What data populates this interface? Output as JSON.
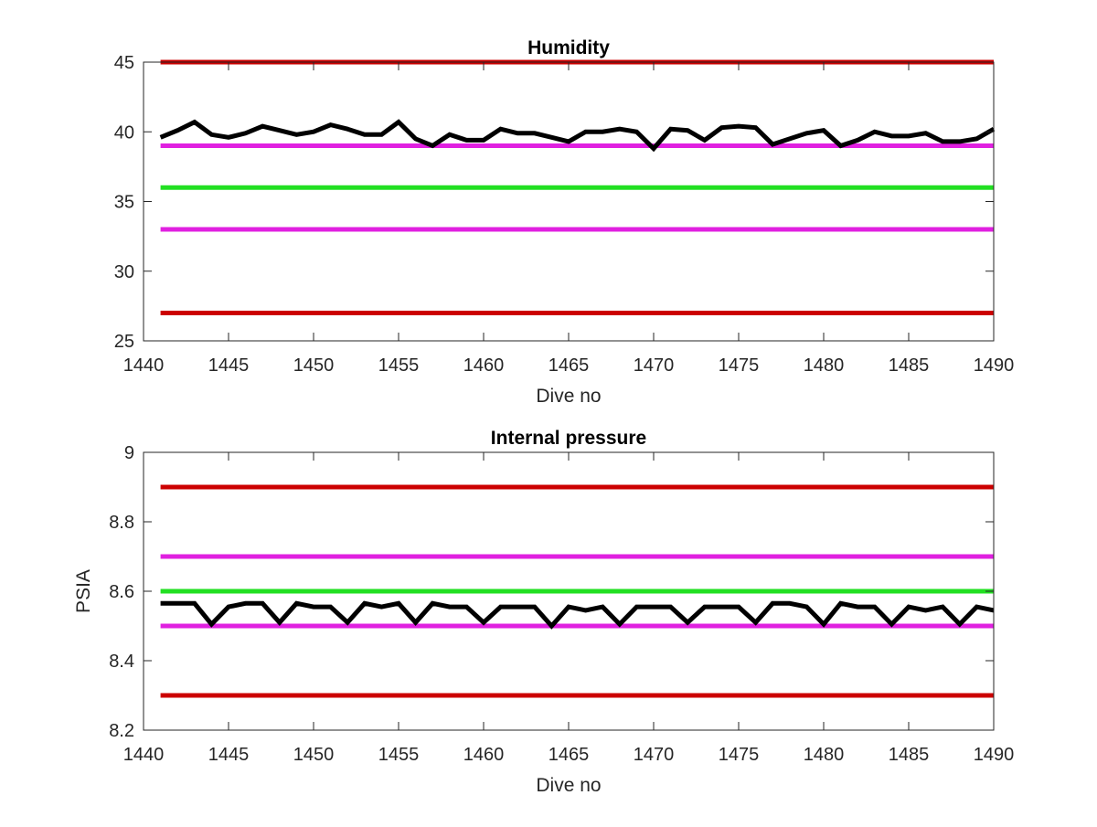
{
  "chart_data": [
    {
      "type": "line",
      "title": "Humidity",
      "xlabel": "Dive no",
      "ylabel": "",
      "xlim": [
        1440,
        1490
      ],
      "ylim": [
        25,
        45
      ],
      "xticks": [
        1440,
        1445,
        1450,
        1455,
        1460,
        1465,
        1470,
        1475,
        1480,
        1485,
        1490
      ],
      "yticks": [
        25,
        30,
        35,
        40,
        45
      ],
      "grid": false,
      "reference_lines": [
        {
          "y": 45,
          "color": "#cc0000"
        },
        {
          "y": 39,
          "color": "#e020e0"
        },
        {
          "y": 36,
          "color": "#22e022"
        },
        {
          "y": 33,
          "color": "#e020e0"
        },
        {
          "y": 27,
          "color": "#cc0000"
        }
      ],
      "series": [
        {
          "color": "#000000",
          "x": [
            1441,
            1442,
            1443,
            1444,
            1445,
            1446,
            1447,
            1448,
            1449,
            1450,
            1451,
            1452,
            1453,
            1454,
            1455,
            1456,
            1457,
            1458,
            1459,
            1460,
            1461,
            1462,
            1463,
            1464,
            1465,
            1466,
            1467,
            1468,
            1469,
            1470,
            1471,
            1472,
            1473,
            1474,
            1475,
            1476,
            1477,
            1478,
            1479,
            1480,
            1481,
            1482,
            1483,
            1484,
            1485,
            1486,
            1487,
            1488,
            1489,
            1490
          ],
          "y": [
            39.6,
            40.1,
            40.7,
            39.8,
            39.6,
            39.9,
            40.4,
            40.1,
            39.8,
            40.0,
            40.5,
            40.2,
            39.8,
            39.8,
            40.7,
            39.5,
            39.0,
            39.8,
            39.4,
            39.4,
            40.2,
            39.9,
            39.9,
            39.6,
            39.3,
            40.0,
            40.0,
            40.2,
            40.0,
            38.8,
            40.2,
            40.1,
            39.4,
            40.3,
            40.4,
            40.3,
            39.1,
            39.5,
            39.9,
            40.1,
            39.0,
            39.4,
            40.0,
            39.7,
            39.7,
            39.9,
            39.3,
            39.3,
            39.5,
            40.2
          ]
        }
      ]
    },
    {
      "type": "line",
      "title": "Internal pressure",
      "xlabel": "Dive no",
      "ylabel": "PSIA",
      "xlim": [
        1440,
        1490
      ],
      "ylim": [
        8.2,
        9.0
      ],
      "xticks": [
        1440,
        1445,
        1450,
        1455,
        1460,
        1465,
        1470,
        1475,
        1480,
        1485,
        1490
      ],
      "yticks": [
        8.2,
        8.4,
        8.6,
        8.8,
        9.0
      ],
      "ytick_labels": [
        "8.2",
        "8.4",
        "8.6",
        "8.8",
        "9"
      ],
      "grid": false,
      "reference_lines": [
        {
          "y": 8.9,
          "color": "#cc0000"
        },
        {
          "y": 8.7,
          "color": "#e020e0"
        },
        {
          "y": 8.6,
          "color": "#22e022"
        },
        {
          "y": 8.5,
          "color": "#e020e0"
        },
        {
          "y": 8.3,
          "color": "#cc0000"
        }
      ],
      "series": [
        {
          "color": "#000000",
          "x": [
            1441,
            1442,
            1443,
            1444,
            1445,
            1446,
            1447,
            1448,
            1449,
            1450,
            1451,
            1452,
            1453,
            1454,
            1455,
            1456,
            1457,
            1458,
            1459,
            1460,
            1461,
            1462,
            1463,
            1464,
            1465,
            1466,
            1467,
            1468,
            1469,
            1470,
            1471,
            1472,
            1473,
            1474,
            1475,
            1476,
            1477,
            1478,
            1479,
            1480,
            1481,
            1482,
            1483,
            1484,
            1485,
            1486,
            1487,
            1488,
            1489,
            1490
          ],
          "y": [
            8.565,
            8.565,
            8.565,
            8.505,
            8.555,
            8.565,
            8.565,
            8.51,
            8.565,
            8.555,
            8.555,
            8.51,
            8.565,
            8.555,
            8.565,
            8.51,
            8.565,
            8.555,
            8.555,
            8.51,
            8.555,
            8.555,
            8.555,
            8.5,
            8.555,
            8.545,
            8.555,
            8.505,
            8.555,
            8.555,
            8.555,
            8.51,
            8.555,
            8.555,
            8.555,
            8.51,
            8.565,
            8.565,
            8.555,
            8.505,
            8.565,
            8.555,
            8.555,
            8.505,
            8.555,
            8.545,
            8.555,
            8.505,
            8.555,
            8.545
          ]
        }
      ]
    }
  ]
}
